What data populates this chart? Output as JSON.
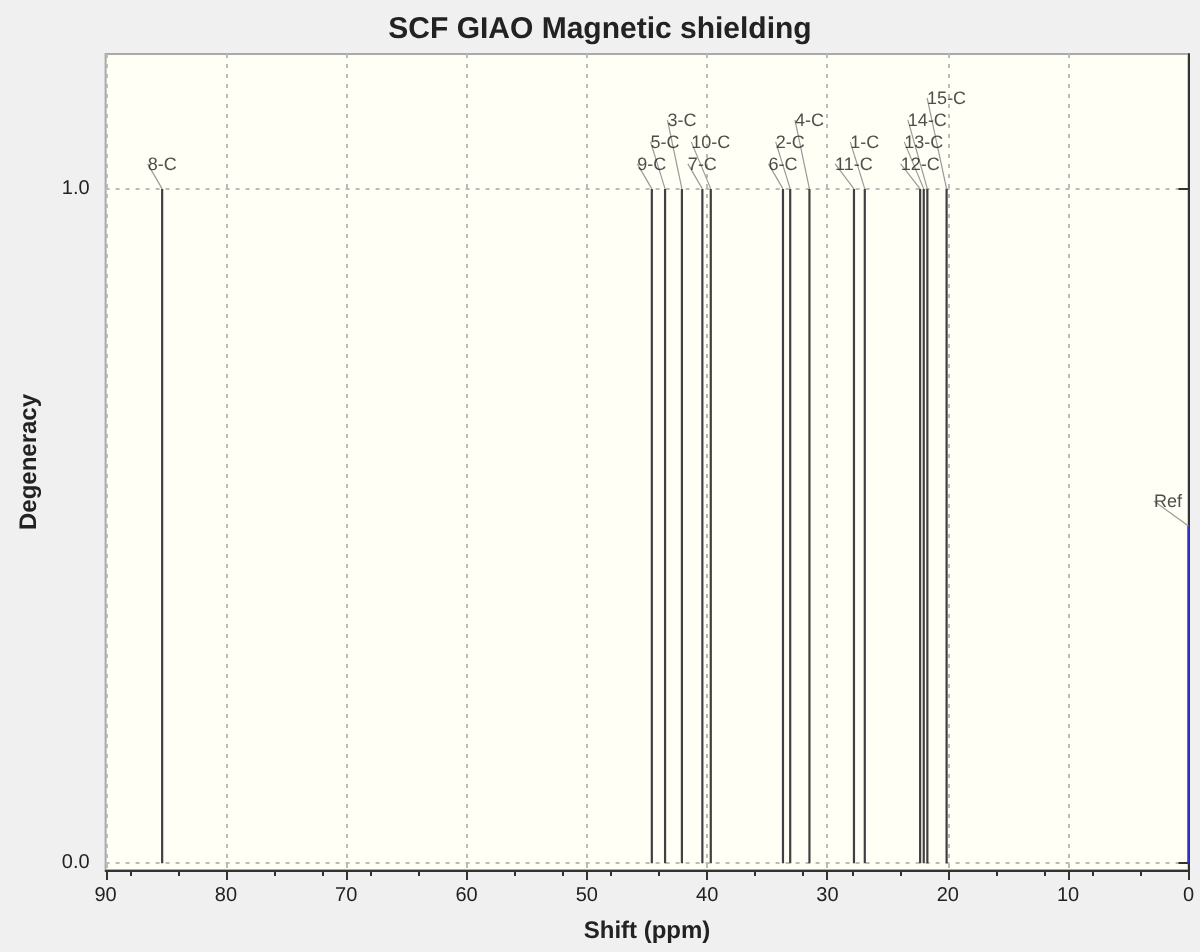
{
  "chart_data": {
    "type": "bar",
    "title": "SCF GIAO Magnetic shielding",
    "xlabel": "Shift (ppm)",
    "ylabel": "Degeneracy",
    "x": [
      85.3,
      44.6,
      43.5,
      42.1,
      40.4,
      39.7,
      33.7,
      33.1,
      31.5,
      27.8,
      26.9,
      22.3,
      22.0,
      21.7,
      20.1,
      0
    ],
    "values": [
      1,
      1,
      1,
      1,
      1,
      1,
      1,
      1,
      1,
      1,
      1,
      1,
      1,
      1,
      1,
      0.5
    ],
    "colors": [
      "#404040",
      "#404040",
      "#404040",
      "#404040",
      "#404040",
      "#404040",
      "#404040",
      "#404040",
      "#404040",
      "#404040",
      "#404040",
      "#404040",
      "#404040",
      "#404040",
      "#404040",
      "#3333cc"
    ],
    "annotations": [
      {
        "text": "8-C",
        "x": 85.3,
        "y": 1
      },
      {
        "text": "9-C",
        "x": 44.6,
        "y": 1
      },
      {
        "text": "5-C",
        "x": 43.5,
        "y": 1
      },
      {
        "text": "3-C",
        "x": 42.1,
        "y": 1
      },
      {
        "text": "7-C",
        "x": 40.4,
        "y": 1
      },
      {
        "text": "10-C",
        "x": 39.7,
        "y": 1
      },
      {
        "text": "6-C",
        "x": 33.7,
        "y": 1
      },
      {
        "text": "2-C",
        "x": 33.1,
        "y": 1
      },
      {
        "text": "4-C",
        "x": 31.5,
        "y": 1
      },
      {
        "text": "11-C",
        "x": 27.8,
        "y": 1
      },
      {
        "text": "1-C",
        "x": 26.9,
        "y": 1
      },
      {
        "text": "12-C",
        "x": 22.3,
        "y": 1
      },
      {
        "text": "13-C",
        "x": 22.0,
        "y": 1
      },
      {
        "text": "14-C",
        "x": 21.7,
        "y": 1
      },
      {
        "text": "15-C",
        "x": 20.1,
        "y": 1
      },
      {
        "text": "Ref",
        "x": 0,
        "y": 0.5
      }
    ],
    "xlim": [
      90,
      0
    ],
    "xticks": [
      90,
      80,
      70,
      60,
      50,
      40,
      30,
      20,
      10,
      0
    ],
    "ylim": [
      -0.01,
      1.2
    ],
    "yticks": [
      {
        "value": 0,
        "label": "0.0"
      },
      {
        "value": 1,
        "label": "1.0"
      }
    ],
    "grid": true
  }
}
